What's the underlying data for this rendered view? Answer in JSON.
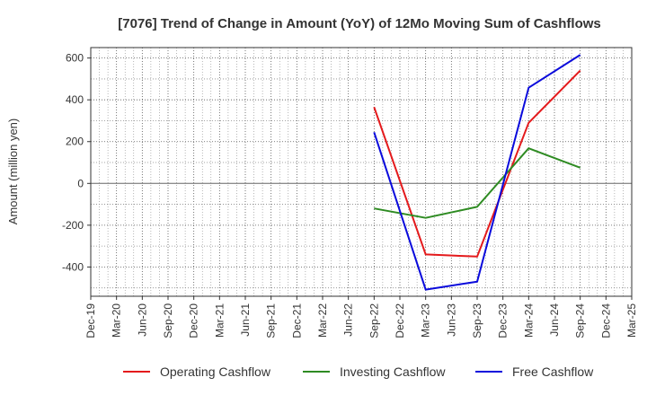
{
  "chart_data": {
    "type": "line",
    "title": "[7076]  Trend of Change in Amount (YoY) of 12Mo Moving Sum of Cashflows",
    "xlabel": "",
    "ylabel": "Amount (million yen)",
    "ylim": [
      -540,
      650
    ],
    "yticks": [
      -400,
      -200,
      0,
      200,
      400,
      600
    ],
    "categories": [
      "Dec-19",
      "Mar-20",
      "Jun-20",
      "Sep-20",
      "Dec-20",
      "Mar-21",
      "Jun-21",
      "Sep-21",
      "Dec-21",
      "Mar-22",
      "Jun-22",
      "Sep-22",
      "Dec-22",
      "Mar-23",
      "Jun-23",
      "Sep-23",
      "Dec-23",
      "Mar-24",
      "Jun-24",
      "Sep-24",
      "Dec-24",
      "Mar-25"
    ],
    "grid": true,
    "legend_position": "bottom",
    "series": [
      {
        "name": "Operating Cashflow",
        "color": "#e41a1c",
        "values": [
          null,
          null,
          null,
          null,
          null,
          null,
          null,
          null,
          null,
          null,
          null,
          365,
          null,
          -340,
          null,
          -350,
          null,
          290,
          null,
          540,
          null,
          null
        ]
      },
      {
        "name": "Investing Cashflow",
        "color": "#2e8b22",
        "values": [
          null,
          null,
          null,
          null,
          null,
          null,
          null,
          null,
          null,
          null,
          null,
          -120,
          null,
          -165,
          null,
          -112,
          null,
          168,
          null,
          75,
          null,
          null
        ]
      },
      {
        "name": "Free Cashflow",
        "color": "#0a0adc",
        "values": [
          null,
          null,
          null,
          null,
          null,
          null,
          null,
          null,
          null,
          null,
          null,
          245,
          null,
          -508,
          null,
          -470,
          null,
          458,
          null,
          615,
          null,
          null
        ]
      }
    ]
  }
}
